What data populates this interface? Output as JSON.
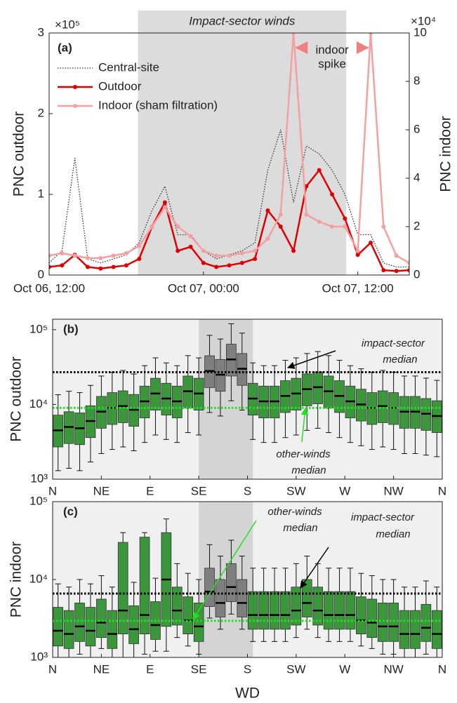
{
  "chart_data": [
    {
      "type": "line",
      "panel_label": "(a)",
      "shade_label": "Impact-sector winds",
      "shade": [
        18.9,
        35.1
      ],
      "shade_color": "#dcdcdc",
      "ylabel": "PNC outdoor",
      "y2label": "PNC indoor",
      "yscale_label": "×10⁵",
      "y2scale_label": "×10⁴",
      "annotation": [
        "indoor",
        "spike"
      ],
      "annotation_color": "#f08080",
      "xlim": [
        12,
        40
      ],
      "xticks": [
        {
          "value": 12,
          "label": "Oct 06, 12:00"
        },
        {
          "value": 24,
          "label": "Oct 07, 00:00"
        },
        {
          "value": 36,
          "label": "Oct 07, 12:00"
        }
      ],
      "ylim": [
        0,
        3
      ],
      "yticks": [
        0,
        1,
        2,
        3
      ],
      "y2lim": [
        0,
        10
      ],
      "y2ticks": [
        0,
        2,
        4,
        6,
        8,
        10
      ],
      "x": [
        12,
        13,
        14,
        15,
        16,
        17,
        18,
        19,
        20,
        21,
        22,
        23,
        24,
        25,
        26,
        27,
        28,
        29,
        30,
        31,
        32,
        33,
        34,
        35,
        36,
        37,
        38,
        39,
        40
      ],
      "series": [
        {
          "name": "Central-site",
          "color": "#333333",
          "line_style": "dotted",
          "markers": false,
          "values": [
            0.15,
            0.3,
            1.45,
            0.2,
            0.15,
            0.2,
            0.25,
            0.4,
            0.8,
            1.1,
            0.5,
            0.5,
            0.3,
            0.2,
            0.25,
            0.3,
            0.4,
            1.3,
            1.8,
            0.9,
            1.6,
            1.5,
            1.3,
            1.0,
            0.5,
            0.5,
            0.15,
            0.1,
            0.1
          ]
        },
        {
          "name": "Outdoor",
          "color": "#e00000",
          "line_style": "solid",
          "markers": true,
          "values": [
            0.1,
            0.12,
            0.25,
            0.1,
            0.08,
            0.1,
            0.12,
            0.2,
            0.6,
            0.9,
            0.3,
            0.35,
            0.15,
            0.1,
            0.12,
            0.15,
            0.2,
            0.8,
            0.6,
            0.3,
            1.1,
            1.3,
            1.0,
            0.7,
            0.25,
            0.4,
            0.06,
            0.05,
            0.06
          ]
        },
        {
          "name": "Indoor (sham filtration)",
          "color": "#f4a0a0",
          "line_style": "solid",
          "markers": true,
          "axis": "y2",
          "values": [
            0.8,
            0.9,
            0.8,
            0.7,
            0.7,
            0.8,
            0.9,
            1.2,
            2.0,
            2.8,
            2.0,
            1.6,
            1.0,
            0.8,
            0.8,
            0.9,
            1.0,
            1.5,
            2.5,
            10,
            2.5,
            2.2,
            2.0,
            2.0,
            1.0,
            10,
            2.0,
            0.8,
            0.5
          ]
        }
      ]
    },
    {
      "type": "box",
      "panel_label": "(b)",
      "ylabel": "PNC outdoor",
      "log_y": true,
      "color": "#3c963c",
      "shade_box_color": "#7f7f7f",
      "background": "#f0f0f0",
      "shade_color": "#d4d4d4",
      "shade": [
        135,
        185
      ],
      "ylim": [
        1000,
        138000
      ],
      "yticks": [
        {
          "value": 1000,
          "label": "10³"
        },
        {
          "value": 10000,
          "label": "10⁴"
        },
        {
          "value": 100000,
          "label": "10⁵"
        }
      ],
      "xlim": [
        0,
        360
      ],
      "xticks": [
        {
          "value": 0,
          "label": "N"
        },
        {
          "value": 45,
          "label": "NE"
        },
        {
          "value": 90,
          "label": "E"
        },
        {
          "value": 135,
          "label": "SE"
        },
        {
          "value": 180,
          "label": "S"
        },
        {
          "value": 225,
          "label": "SW"
        },
        {
          "value": 270,
          "label": "W"
        },
        {
          "value": 315,
          "label": "NW"
        },
        {
          "value": 360,
          "label": "N"
        }
      ],
      "x": [
        5,
        15,
        25,
        35,
        45,
        55,
        65,
        75,
        85,
        95,
        105,
        115,
        125,
        135,
        145,
        155,
        165,
        175,
        185,
        195,
        205,
        215,
        225,
        235,
        245,
        255,
        265,
        275,
        285,
        295,
        305,
        315,
        325,
        335,
        345,
        355
      ],
      "whisker_low": [
        1300,
        1400,
        1300,
        1700,
        2200,
        2500,
        2700,
        2400,
        3100,
        3900,
        3400,
        3100,
        4200,
        3900,
        7800,
        7000,
        11200,
        8400,
        3400,
        3100,
        3100,
        3600,
        3900,
        4500,
        4800,
        4200,
        3600,
        3100,
        2800,
        2500,
        2700,
        2500,
        2200,
        2200,
        2100,
        2000
      ],
      "q1": [
        2700,
        3000,
        2900,
        3600,
        4800,
        5400,
        5700,
        5100,
        6600,
        8400,
        7200,
        6600,
        9000,
        8400,
        16800,
        15000,
        24000,
        18000,
        7200,
        6600,
        6600,
        7800,
        8400,
        9600,
        10200,
        9000,
        7800,
        6600,
        6000,
        5400,
        5700,
        5400,
        4800,
        4800,
        4500,
        4200
      ],
      "median": [
        4500,
        5000,
        4800,
        6000,
        8000,
        9000,
        9500,
        8500,
        11000,
        14000,
        12000,
        11000,
        15000,
        14000,
        28000,
        25000,
        40000,
        30000,
        12000,
        11000,
        11000,
        13000,
        14000,
        16000,
        17000,
        15000,
        13000,
        11000,
        10000,
        9000,
        9500,
        9000,
        8000,
        8000,
        7500,
        7000
      ],
      "q3": [
        7200,
        8000,
        7700,
        9600,
        12800,
        14400,
        15200,
        13600,
        17600,
        22400,
        19200,
        17600,
        24000,
        22400,
        44800,
        40000,
        64000,
        48000,
        19200,
        17600,
        17600,
        20800,
        22400,
        25600,
        27200,
        24000,
        20800,
        17600,
        16000,
        14400,
        15200,
        14400,
        12800,
        12800,
        12000,
        11200
      ],
      "whisker_high": [
        13500,
        15000,
        14400,
        18000,
        24000,
        27000,
        28500,
        25500,
        33000,
        42000,
        36000,
        33000,
        45000,
        42000,
        84000,
        75000,
        120000,
        90000,
        36000,
        33000,
        33000,
        39000,
        42000,
        48000,
        51000,
        45000,
        39000,
        33000,
        30000,
        27000,
        28500,
        27000,
        24000,
        24000,
        22500,
        21000
      ],
      "reference_lines": [
        {
          "label": [
            "impact-sector",
            "median"
          ],
          "value": 27000,
          "color": "#000000"
        },
        {
          "label": [
            "other-winds",
            "median"
          ],
          "value": 9000,
          "color": "#22e022"
        }
      ]
    },
    {
      "type": "box",
      "panel_label": "(c)",
      "ylabel": "PNC indoor",
      "xlabel": "WD",
      "log_y": true,
      "color": "#3c963c",
      "shade_box_color": "#7f7f7f",
      "background": "#f0f0f0",
      "shade_color": "#d4d4d4",
      "shade": [
        135,
        185
      ],
      "ylim": [
        1000,
        100000
      ],
      "yticks": [
        {
          "value": 1000,
          "label": "10³"
        },
        {
          "value": 10000,
          "label": "10⁴"
        },
        {
          "value": 100000,
          "label": "10⁵"
        }
      ],
      "xlim": [
        0,
        360
      ],
      "xticks": [
        {
          "value": 0,
          "label": "N"
        },
        {
          "value": 45,
          "label": "NE"
        },
        {
          "value": 90,
          "label": "E"
        },
        {
          "value": 135,
          "label": "SE"
        },
        {
          "value": 180,
          "label": "S"
        },
        {
          "value": 225,
          "label": "SW"
        },
        {
          "value": 270,
          "label": "W"
        },
        {
          "value": 315,
          "label": "NW"
        },
        {
          "value": 360,
          "label": "N"
        }
      ],
      "x": [
        5,
        15,
        25,
        35,
        45,
        55,
        65,
        75,
        85,
        95,
        105,
        115,
        125,
        135,
        145,
        155,
        165,
        175,
        185,
        195,
        205,
        215,
        225,
        235,
        245,
        255,
        265,
        275,
        285,
        295,
        305,
        315,
        325,
        335,
        345,
        355
      ],
      "whisker_low": [
        1000,
        900,
        1100,
        1000,
        1300,
        900,
        1000,
        1000,
        1100,
        1200,
        1200,
        1800,
        1400,
        1100,
        3200,
        2300,
        3600,
        2300,
        1600,
        1600,
        1600,
        1600,
        1800,
        2300,
        1800,
        1600,
        1600,
        1600,
        1400,
        1300,
        1100,
        1100,
        900,
        900,
        1100,
        900
      ],
      "q1": [
        1400,
        1300,
        1600,
        1400,
        1800,
        1300,
        2000,
        1500,
        2000,
        1700,
        2500,
        2600,
        2000,
        1600,
        4500,
        3300,
        5200,
        3300,
        2300,
        2300,
        2300,
        2300,
        2600,
        3300,
        2600,
        2300,
        2300,
        2300,
        2000,
        1800,
        1600,
        1600,
        1300,
        1300,
        1600,
        1300
      ],
      "median": [
        2200,
        2000,
        2500,
        2200,
        2800,
        2000,
        4000,
        2300,
        3500,
        2600,
        10000,
        4000,
        3000,
        2500,
        7000,
        5000,
        8000,
        5000,
        3500,
        3500,
        3500,
        3500,
        4000,
        5000,
        4000,
        3500,
        3500,
        3500,
        3000,
        2800,
        2500,
        2500,
        2000,
        2000,
        2400,
        2000
      ],
      "q3": [
        4400,
        4000,
        5000,
        4400,
        5600,
        4000,
        30000,
        4600,
        35000,
        5200,
        40000,
        8000,
        6000,
        5000,
        14000,
        10000,
        16000,
        10000,
        7000,
        7000,
        7000,
        7000,
        8000,
        10000,
        8000,
        7000,
        7000,
        7000,
        6000,
        5600,
        5000,
        5000,
        4000,
        4000,
        4800,
        4000
      ],
      "whisker_high": [
        8800,
        8000,
        10000,
        8800,
        11200,
        8000,
        40000,
        9200,
        40000,
        10400,
        60000,
        16000,
        12000,
        10000,
        28000,
        20000,
        32000,
        20000,
        14000,
        14000,
        14000,
        14000,
        16000,
        20000,
        16000,
        14000,
        14000,
        14000,
        12000,
        11200,
        10000,
        10000,
        8000,
        8000,
        9600,
        8000
      ],
      "reference_lines": [
        {
          "label": [
            "impact-sector",
            "median"
          ],
          "value": 6600,
          "color": "#000000"
        },
        {
          "label": [
            "other-winds",
            "median"
          ],
          "value": 2950,
          "color": "#22e022"
        }
      ]
    }
  ]
}
